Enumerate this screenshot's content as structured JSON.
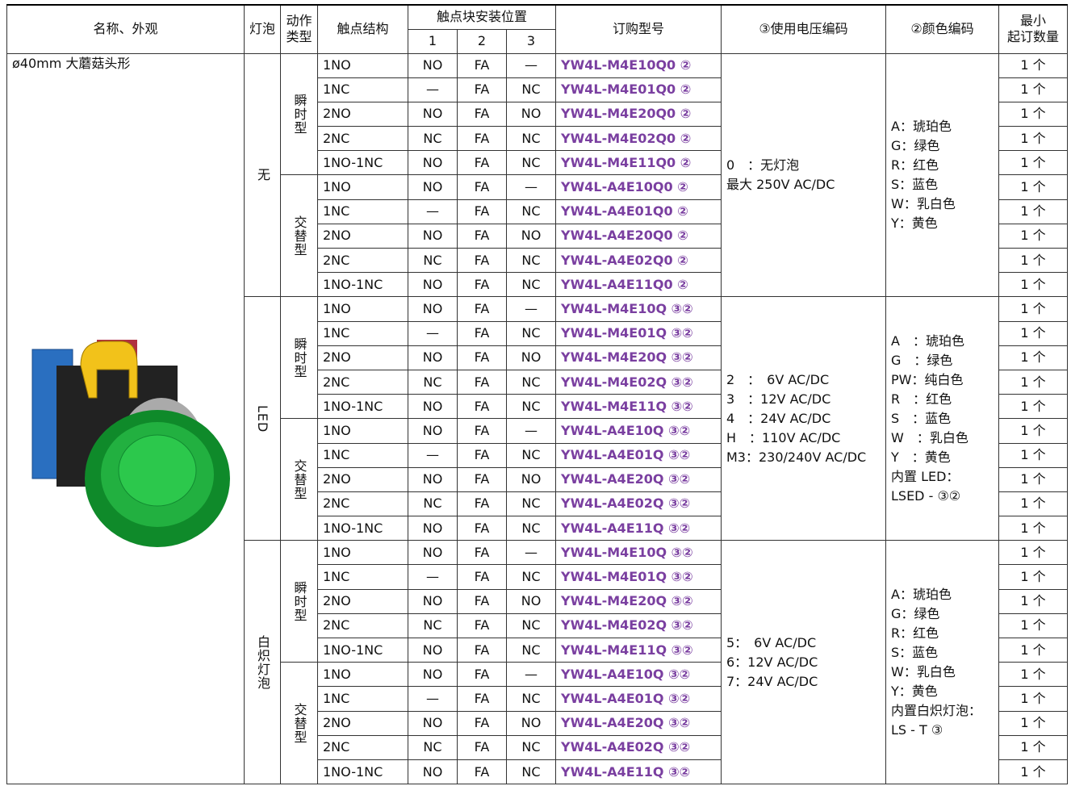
{
  "header": {
    "name_appearance": "名称、外观",
    "lamp": "灯泡",
    "action_type": [
      "动作",
      "类型"
    ],
    "contact_structure": "触点结构",
    "position": "触点块安装位置",
    "positions": [
      "1",
      "2",
      "3"
    ],
    "model": "订购型号",
    "voltage": "③使用电压编码",
    "color": "②颜色编码",
    "min_order": [
      "最小",
      "起订数量"
    ]
  },
  "product_name": "ø40mm 大蘑菇头形",
  "groups": [
    {
      "lamp": "无",
      "voltage": [
        "0　：无灯泡",
        "最大 250V AC/DC"
      ],
      "colors": [
        "A：琥珀色",
        "G：绿色",
        "R：红色",
        "S：蓝色",
        "W：乳白色",
        "Y：黄色"
      ],
      "actions": [
        {
          "type": "瞬时型",
          "rows": [
            [
              "1NO",
              "NO",
              "FA",
              "—",
              "YW4L-M4E10Q0 ②",
              "1 个"
            ],
            [
              "1NC",
              "—",
              "FA",
              "NC",
              "YW4L-M4E01Q0 ②",
              "1 个"
            ],
            [
              "2NO",
              "NO",
              "FA",
              "NO",
              "YW4L-M4E20Q0 ②",
              "1 个"
            ],
            [
              "2NC",
              "NC",
              "FA",
              "NC",
              "YW4L-M4E02Q0 ②",
              "1 个"
            ],
            [
              "1NO-1NC",
              "NO",
              "FA",
              "NC",
              "YW4L-M4E11Q0 ②",
              "1 个"
            ]
          ]
        },
        {
          "type": "交替型",
          "rows": [
            [
              "1NO",
              "NO",
              "FA",
              "—",
              "YW4L-A4E10Q0 ②",
              "1 个"
            ],
            [
              "1NC",
              "—",
              "FA",
              "NC",
              "YW4L-A4E01Q0 ②",
              "1 个"
            ],
            [
              "2NO",
              "NO",
              "FA",
              "NO",
              "YW4L-A4E20Q0 ②",
              "1 个"
            ],
            [
              "2NC",
              "NC",
              "FA",
              "NC",
              "YW4L-A4E02Q0 ②",
              "1 个"
            ],
            [
              "1NO-1NC",
              "NO",
              "FA",
              "NC",
              "YW4L-A4E11Q0 ②",
              "1 个"
            ]
          ]
        }
      ]
    },
    {
      "lamp": "LED",
      "voltage": [
        "2　：　6V AC/DC",
        "3　：12V AC/DC",
        "4　：24V AC/DC",
        "H　：110V AC/DC",
        "M3：230/240V AC/DC"
      ],
      "colors": [
        "A　：琥珀色",
        "G　：绿色",
        "PW：纯白色",
        "R　：红色",
        "S　：蓝色",
        "W　：乳白色",
        "Y　：黄色",
        "内置 LED：",
        "LSED - ③②"
      ],
      "actions": [
        {
          "type": "瞬时型",
          "rows": [
            [
              "1NO",
              "NO",
              "FA",
              "—",
              "YW4L-M4E10Q ③②",
              "1 个"
            ],
            [
              "1NC",
              "—",
              "FA",
              "NC",
              "YW4L-M4E01Q ③②",
              "1 个"
            ],
            [
              "2NO",
              "NO",
              "FA",
              "NO",
              "YW4L-M4E20Q ③②",
              "1 个"
            ],
            [
              "2NC",
              "NC",
              "FA",
              "NC",
              "YW4L-M4E02Q ③②",
              "1 个"
            ],
            [
              "1NO-1NC",
              "NO",
              "FA",
              "NC",
              "YW4L-M4E11Q ③②",
              "1 个"
            ]
          ]
        },
        {
          "type": "交替型",
          "rows": [
            [
              "1NO",
              "NO",
              "FA",
              "—",
              "YW4L-A4E10Q ③②",
              "1 个"
            ],
            [
              "1NC",
              "—",
              "FA",
              "NC",
              "YW4L-A4E01Q ③②",
              "1 个"
            ],
            [
              "2NO",
              "NO",
              "FA",
              "NO",
              "YW4L-A4E20Q ③②",
              "1 个"
            ],
            [
              "2NC",
              "NC",
              "FA",
              "NC",
              "YW4L-A4E02Q ③②",
              "1 个"
            ],
            [
              "1NO-1NC",
              "NO",
              "FA",
              "NC",
              "YW4L-A4E11Q ③②",
              "1 个"
            ]
          ]
        }
      ]
    },
    {
      "lamp": "白炽灯泡",
      "voltage": [
        "5：　6V AC/DC",
        "6：12V AC/DC",
        "7：24V AC/DC"
      ],
      "colors": [
        "A：琥珀色",
        "G：绿色",
        "R：红色",
        "S：蓝色",
        "W：乳白色",
        "Y：黄色",
        "内置白炽灯泡：",
        "LS - T ③"
      ],
      "actions": [
        {
          "type": "瞬时型",
          "rows": [
            [
              "1NO",
              "NO",
              "FA",
              "—",
              "YW4L-M4E10Q ③②",
              "1 个"
            ],
            [
              "1NC",
              "—",
              "FA",
              "NC",
              "YW4L-M4E01Q ③②",
              "1 个"
            ],
            [
              "2NO",
              "NO",
              "FA",
              "NO",
              "YW4L-M4E20Q ③②",
              "1 个"
            ],
            [
              "2NC",
              "NC",
              "FA",
              "NC",
              "YW4L-M4E02Q ③②",
              "1 个"
            ],
            [
              "1NO-1NC",
              "NO",
              "FA",
              "NC",
              "YW4L-M4E11Q ③②",
              "1 个"
            ]
          ]
        },
        {
          "type": "交替型",
          "rows": [
            [
              "1NO",
              "NO",
              "FA",
              "—",
              "YW4L-A4E10Q ③②",
              "1 个"
            ],
            [
              "1NC",
              "—",
              "FA",
              "NC",
              "YW4L-A4E01Q ③②",
              "1 个"
            ],
            [
              "2NO",
              "NO",
              "FA",
              "NO",
              "YW4L-A4E20Q ③②",
              "1 个"
            ],
            [
              "2NC",
              "NC",
              "FA",
              "NC",
              "YW4L-A4E02Q ③②",
              "1 个"
            ],
            [
              "1NO-1NC",
              "NO",
              "FA",
              "NC",
              "YW4L-A4E11Q ③②",
              "1 个"
            ]
          ]
        }
      ]
    }
  ]
}
